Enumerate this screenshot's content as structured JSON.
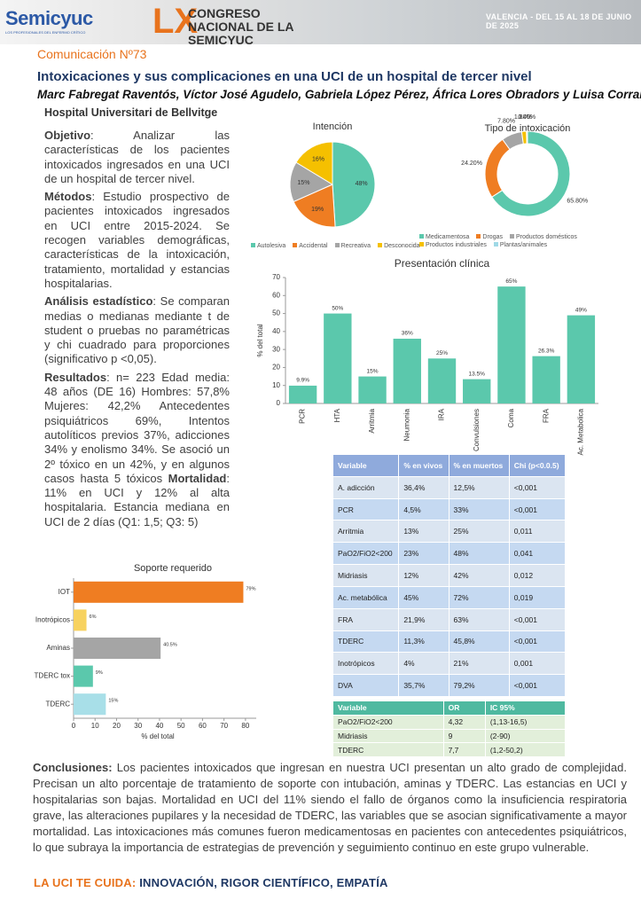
{
  "header": {
    "logo": "Semicyuc",
    "logo_subtitle": "LOS PROFESIONALES DEL ENFERMO CRÍTICO",
    "congress_number": "LX",
    "congress_name": "CONGRESO NACIONAL DE LA SEMICYUC",
    "location": "VALENCIA - DEL 15 AL 18 DE JUNIO DE 2025"
  },
  "communication": "Comunicación Nº73",
  "title": "Intoxicaciones y sus complicaciones en una UCI de un hospital de tercer nivel",
  "authors": "Marc Fabregat Raventós, Víctor José Agudelo, Gabriela López Pérez, África Lores Obradors y Luisa Corral Ansa",
  "hospital": "Hospital Universitari de Bellvitge",
  "sections": [
    {
      "label": "Objetivo",
      "text": ": Analizar las características de los pacientes intoxicados ingresados en una UCI de un hospital de tercer nivel."
    },
    {
      "label": "Métodos",
      "text": ": Estudio prospectivo de pacientes intoxicados ingresados en UCI entre 2015-2024. Se recogen variables demográficas, características de la intoxicación, tratamiento, mortalidad y estancias hospitalarias."
    },
    {
      "label": "Análisis estadístico",
      "text": ": Se comparan medias o medianas mediante t de student o pruebas no paramétricas y chi cuadrado para proporciones (significativo p <0,05)."
    },
    {
      "label": "Resultados",
      "text": ": n= 223 Edad media: 48 años (DE 16) Hombres: 57,8% Mujeres: 42,2% Antecedentes psiquiátricos 69%, Intentos autolíticos previos 37%, adicciones 34% y enolismo 34%. Se asoció un 2º tóxico en un 42%, y en algunos casos hasta 5 tóxicos ",
      "emphasis": "Mortalidad",
      "text_after": ": 11% en UCI y 12% al alta hospitalaria. Estancia mediana en UCI de 2 días (Q1: 1,5; Q3: 5)"
    }
  ],
  "chart_data": [
    {
      "type": "pie",
      "title": "Intención",
      "categories": [
        "Autolesiva",
        "Accidental",
        "Recreativa",
        "Desconocida"
      ],
      "values": [
        48,
        19,
        15,
        16
      ],
      "value_labels": [
        "48%",
        "19%",
        "15%",
        "16%"
      ],
      "colors": [
        "#5bc8ac",
        "#ef7d22",
        "#a5a5a5",
        "#f5c000"
      ],
      "legend": "bottom"
    },
    {
      "type": "pie",
      "donut": true,
      "title": "Tipo de intoxicación",
      "categories": [
        "Medicamentosa",
        "Drogas",
        "Productos domésticos",
        "Productos industriales",
        "Plantas/animales"
      ],
      "values": [
        65.8,
        24.2,
        7.8,
        1.8,
        0.4
      ],
      "value_labels": [
        "65.80%",
        "24.20%",
        "7.80%",
        "1.80%",
        "0.40%"
      ],
      "colors": [
        "#5bc8ac",
        "#ef7d22",
        "#a5a5a5",
        "#f5c000",
        "#9fd9e6"
      ],
      "legend": "bottom"
    },
    {
      "type": "bar",
      "title": "Presentación clínica",
      "ylabel": "% del total",
      "categories": [
        "PCR",
        "HTA",
        "Arritmia",
        "Neumonia",
        "IRA",
        "Convulsiones",
        "Coma",
        "FRA",
        "Ac. Metabolica"
      ],
      "values": [
        9.9,
        50,
        15,
        36,
        25,
        13.5,
        65,
        26.3,
        49
      ],
      "value_labels": [
        "9.9%",
        "50%",
        "15%",
        "36%",
        "25%",
        "13.5%",
        "65%",
        "26.3%",
        "49%"
      ],
      "color": "#5bc8ac",
      "ylim": [
        0,
        70
      ],
      "yticks": [
        0,
        10,
        20,
        30,
        40,
        50,
        60,
        70
      ],
      "grid": false
    },
    {
      "type": "barh",
      "title": "Soporte requerido",
      "xlabel": "% del total",
      "categories": [
        "IOT",
        "Inotrópicos",
        "Aminas",
        "TDERC tox",
        "TDERC"
      ],
      "values": [
        79,
        6,
        40.5,
        9,
        15
      ],
      "value_labels": [
        "79%",
        "6%",
        "40.5%",
        "9%",
        "15%"
      ],
      "colors": [
        "#ef7d22",
        "#f7d260",
        "#a5a5a5",
        "#5bc8ac",
        "#a8dfe8"
      ],
      "xlim": [
        0,
        85
      ],
      "xticks": [
        0,
        10,
        20,
        30,
        40,
        50,
        60,
        70,
        80
      ],
      "grid": false
    }
  ],
  "tables": [
    {
      "header": [
        "Variable",
        "% en vivos",
        "% en muertos",
        "Chi (p<0.0.5)"
      ],
      "rows": [
        [
          "A. adicción",
          "36,4%",
          "12,5%",
          "<0,001"
        ],
        [
          "PCR",
          "4,5%",
          "33%",
          "<0,001"
        ],
        [
          "Arritmia",
          "13%",
          "25%",
          "0,011"
        ],
        [
          "PaO2/FiO2<200",
          "23%",
          "48%",
          "0,041"
        ],
        [
          "Midriasis",
          "12%",
          "42%",
          "0,012"
        ],
        [
          "Ac. metabólica",
          "45%",
          "72%",
          "0,019"
        ],
        [
          "FRA",
          "21,9%",
          "63%",
          "<0,001"
        ],
        [
          "TDERC",
          "11,3%",
          "45,8%",
          "<0,001"
        ],
        [
          "Inotrópicos",
          "4%",
          "21%",
          "0,001"
        ],
        [
          "DVA",
          "35,7%",
          "79,2%",
          "<0,001"
        ]
      ]
    },
    {
      "header": [
        "Variable",
        "OR",
        "IC 95%"
      ],
      "rows": [
        [
          "PaO2/FiO2<200",
          "4,32",
          "(1,13-16,5)"
        ],
        [
          "Midriasis",
          "9",
          "(2-90)"
        ],
        [
          "TDERC",
          "7,7",
          "(1,2-50,2)"
        ]
      ]
    }
  ],
  "conclusions": {
    "label": "Conclusiones:",
    "text": "Los pacientes intoxicados que ingresan en nuestra UCI presentan un alto grado de complejidad. Precisan un alto porcentaje de tratamiento de soporte con intubación, aminas y TDERC. Las estancias en UCI y hospitalarias son bajas. Mortalidad en UCI del 11% siendo el fallo de órganos como la insuficiencia respiratoria grave, las alteraciones pupilares y la necesidad de TDERC, las variables que se asocian significativamente a mayor mortalidad. Las intoxicaciones más comunes fueron medicamentosas en pacientes con antecedentes psiquiátricos, lo que subraya la importancia de estrategias de prevención y seguimiento continuo en este grupo vulnerable."
  },
  "footer": {
    "lead": "LA UCI TE CUIDA:",
    "text": "INNOVACIÓN, RIGOR CIENTÍFICO, EMPATÍA"
  }
}
